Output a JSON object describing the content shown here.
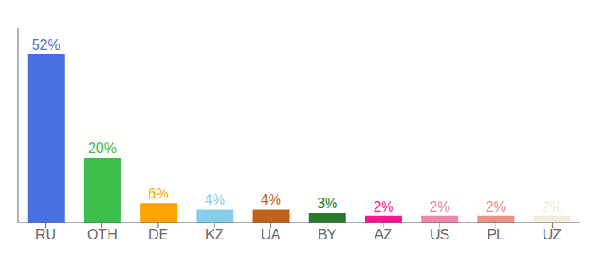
{
  "chart_data": {
    "type": "bar",
    "categories": [
      "RU",
      "OTH",
      "DE",
      "KZ",
      "UA",
      "BY",
      "AZ",
      "US",
      "PL",
      "UZ"
    ],
    "values": [
      52,
      20,
      6,
      4,
      4,
      3,
      2,
      2,
      2,
      2
    ],
    "value_labels": [
      "52%",
      "20%",
      "6%",
      "4%",
      "4%",
      "3%",
      "2%",
      "2%",
      "2%",
      "2%"
    ],
    "colors": [
      "#4A6FE3",
      "#3DBD4A",
      "#FFA500",
      "#87CEEB",
      "#C0621A",
      "#2A7A2A",
      "#FF1493",
      "#EE88AA",
      "#E8928A",
      "#F0EDDC"
    ],
    "ylim": [
      0,
      60
    ],
    "data_labels": true,
    "tick_labels": "x",
    "grid": false
  }
}
